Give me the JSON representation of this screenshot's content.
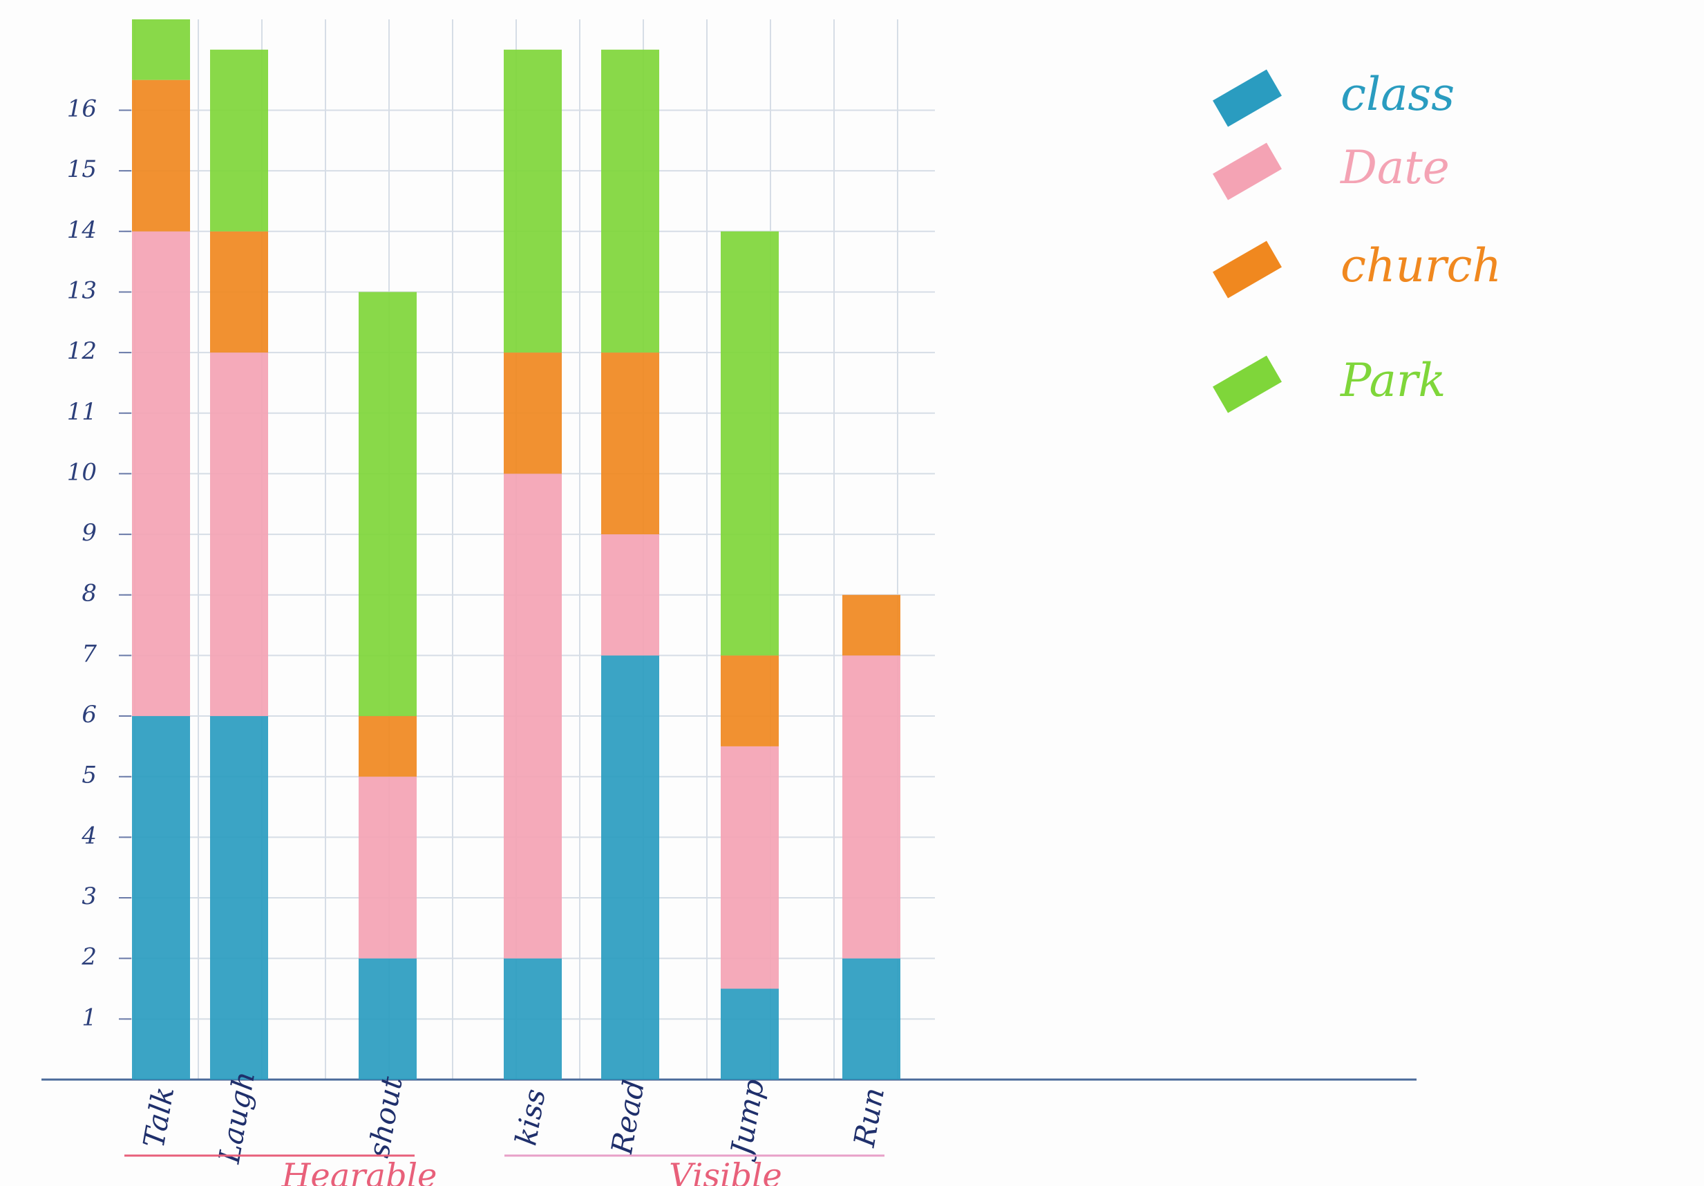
{
  "chart_data": {
    "type": "stacked_bar",
    "categories": [
      "Talk",
      "Laugh",
      "shout",
      "kiss",
      "Read",
      "Jump",
      "Run"
    ],
    "series": [
      {
        "name": "class",
        "color": "#2a9cc0",
        "values": [
          6,
          6,
          2,
          2,
          7,
          1.5,
          2
        ]
      },
      {
        "name": "Date",
        "color": "#f4a3b4",
        "values": [
          8,
          6,
          3,
          8,
          2,
          4,
          5
        ]
      },
      {
        "name": "church",
        "color": "#f0881f",
        "values": [
          2.5,
          2,
          1,
          2,
          3,
          1.5,
          1
        ]
      },
      {
        "name": "Park",
        "color": "#7fd63a",
        "values": [
          1,
          3,
          7,
          5,
          5,
          7,
          0
        ]
      }
    ],
    "groups": [
      "Hearable",
      "Visible"
    ],
    "ylim": [
      0,
      17.5
    ],
    "yticks": [
      1,
      2,
      3,
      4,
      5,
      6,
      7,
      8,
      9,
      10,
      11,
      12,
      13,
      14,
      15,
      16
    ],
    "grid": true
  }
}
